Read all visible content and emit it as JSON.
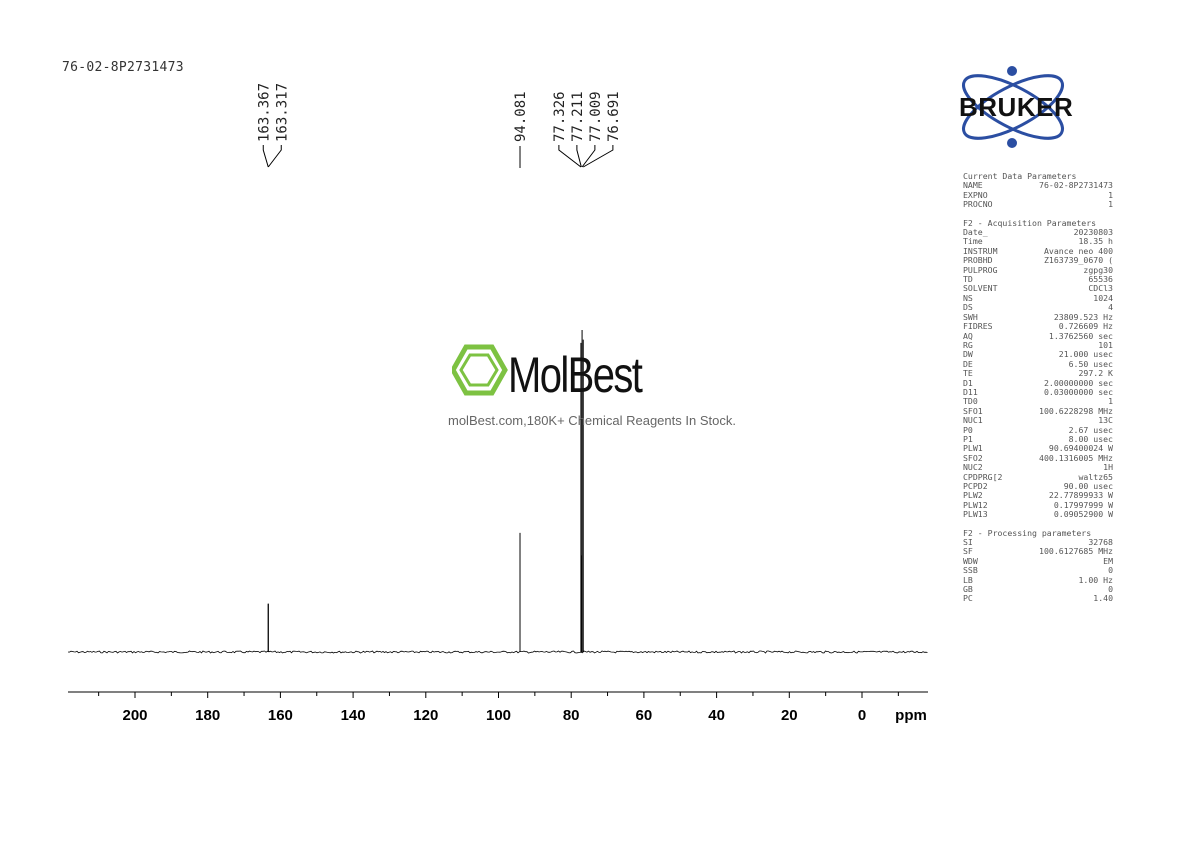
{
  "sample_name": "76-02-8P2731473",
  "logo": {
    "brand": "BRUKER",
    "brand_color": "#2b4ea2"
  },
  "watermark": {
    "brand": "MolBest",
    "tagline": "molBest.com,180K+ Chemical Reagents In Stock.",
    "color": "#7dc242"
  },
  "parameters": [
    {
      "heading": "Current Data Parameters",
      "rows": [
        [
          "NAME",
          "76-02-8P2731473"
        ],
        [
          "EXPNO",
          "1"
        ],
        [
          "PROCNO",
          "1"
        ]
      ]
    },
    {
      "heading": "F2 - Acquisition Parameters",
      "rows": [
        [
          "Date_",
          "20230803"
        ],
        [
          "Time",
          "18.35 h"
        ],
        [
          "INSTRUM",
          "Avance neo 400"
        ],
        [
          "PROBHD",
          "Z163739_0670 ("
        ],
        [
          "PULPROG",
          "zgpg30"
        ],
        [
          "TD",
          "65536"
        ],
        [
          "SOLVENT",
          "CDCl3"
        ],
        [
          "NS",
          "1024"
        ],
        [
          "DS",
          "4"
        ],
        [
          "SWH",
          "23809.523 Hz"
        ],
        [
          "FIDRES",
          "0.726609 Hz"
        ],
        [
          "AQ",
          "1.3762560 sec"
        ],
        [
          "RG",
          "101"
        ],
        [
          "DW",
          "21.000 usec"
        ],
        [
          "DE",
          "6.50 usec"
        ],
        [
          "TE",
          "297.2 K"
        ],
        [
          "D1",
          "2.00000000 sec"
        ],
        [
          "D11",
          "0.03000000 sec"
        ],
        [
          "TD0",
          "1"
        ],
        [
          "SFO1",
          "100.6228298 MHz"
        ],
        [
          "NUC1",
          "13C"
        ],
        [
          "P0",
          "2.67 usec"
        ],
        [
          "P1",
          "8.00 usec"
        ],
        [
          "PLW1",
          "90.69400024 W"
        ],
        [
          "SFO2",
          "400.1316005 MHz"
        ],
        [
          "NUC2",
          "1H"
        ],
        [
          "CPDPRG[2",
          "waltz65"
        ],
        [
          "PCPD2",
          "90.00 usec"
        ],
        [
          "PLW2",
          "22.77899933 W"
        ],
        [
          "PLW12",
          "0.17997999 W"
        ],
        [
          "PLW13",
          "0.09052900 W"
        ]
      ]
    },
    {
      "heading": "F2 - Processing parameters",
      "rows": [
        [
          "SI",
          "32768"
        ],
        [
          "SF",
          "100.6127685 MHz"
        ],
        [
          "WDW",
          "EM"
        ],
        [
          "SSB",
          "0"
        ],
        [
          "LB",
          "1.00 Hz"
        ],
        [
          "GB",
          "0"
        ],
        [
          "PC",
          "1.40"
        ]
      ]
    }
  ],
  "chart_data": {
    "type": "line",
    "xlabel": "ppm",
    "xlim": [
      218,
      -18
    ],
    "x_reversed": true,
    "x_ticks": [
      200,
      180,
      160,
      140,
      120,
      100,
      80,
      60,
      40,
      20,
      0
    ],
    "grid": false,
    "peaks": [
      {
        "ppm": 163.367,
        "intensity": 0.15
      },
      {
        "ppm": 163.317,
        "intensity": 0.15
      },
      {
        "ppm": 94.081,
        "intensity": 0.37
      },
      {
        "ppm": 77.326,
        "intensity": 0.96
      },
      {
        "ppm": 77.211,
        "intensity": 0.3
      },
      {
        "ppm": 77.009,
        "intensity": 1.0
      },
      {
        "ppm": 76.691,
        "intensity": 0.97
      }
    ],
    "peak_labels": [
      "163.367",
      "163.317",
      "94.081",
      "77.326",
      "77.211",
      "77.009",
      "76.691"
    ],
    "line_color": "#000000"
  }
}
